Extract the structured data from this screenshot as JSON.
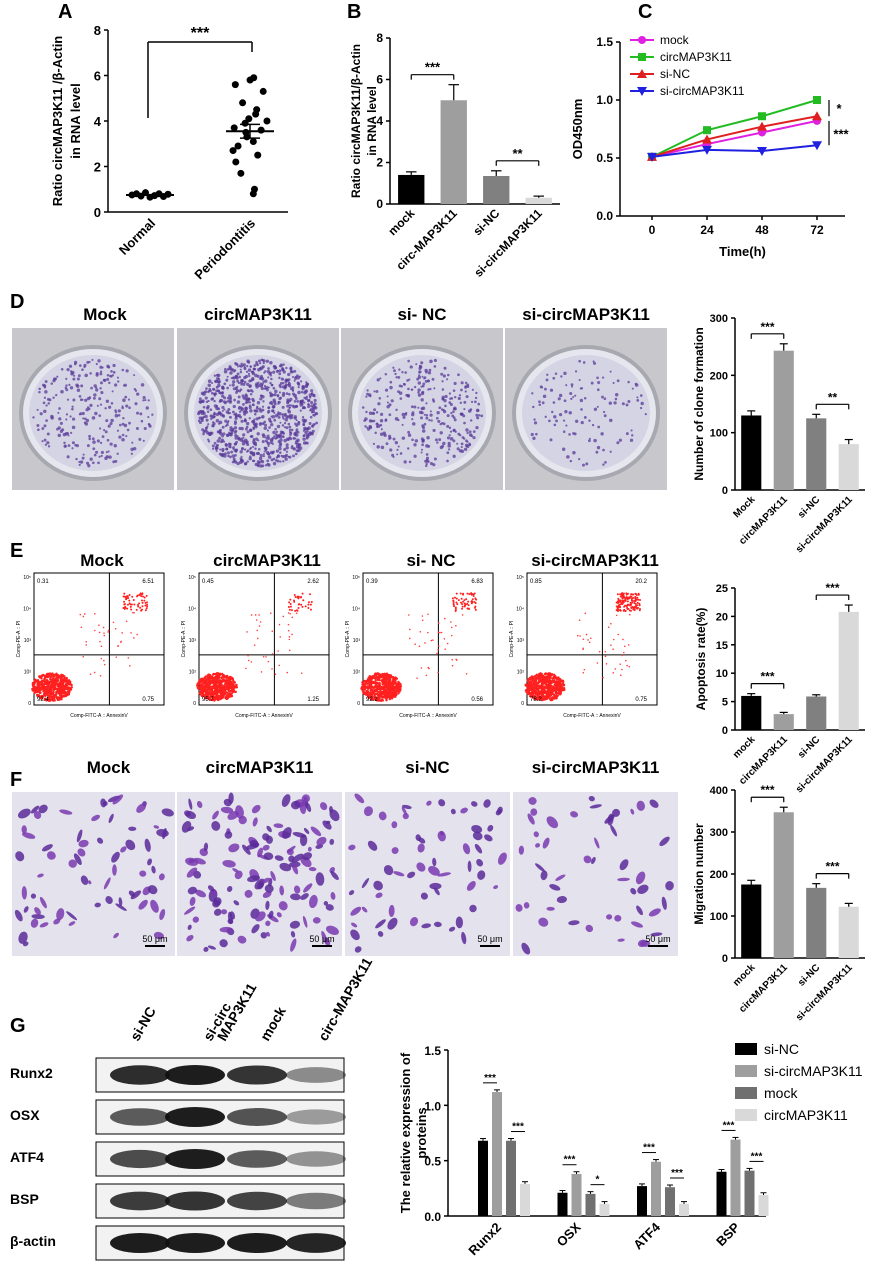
{
  "figure": {
    "panels": {
      "A": {
        "letter": "A"
      },
      "B": {
        "letter": "B"
      },
      "C": {
        "letter": "C"
      },
      "D": {
        "letter": "D",
        "image_labels": [
          "Mock",
          "circMAP3K11",
          "si- NC",
          "si-circMAP3K11"
        ]
      },
      "E": {
        "letter": "E",
        "image_labels": [
          "Mock",
          "circMAP3K11",
          "si- NC",
          "si-circMAP3K11"
        ],
        "flow": [
          {
            "ul": "0.31",
            "ur": "6.51",
            "ll": "92.4",
            "lr": "0.75"
          },
          {
            "ul": "0.45",
            "ur": "2.62",
            "ll": "95.7",
            "lr": "1.25"
          },
          {
            "ul": "0.39",
            "ur": "6.83",
            "ll": "92.2",
            "lr": "0.56"
          },
          {
            "ul": "0.85",
            "ur": "20.2",
            "ll": "78.2",
            "lr": "0.75"
          }
        ],
        "flow_xlabel": "Comp-FITC-A :: AnnexinV",
        "flow_ylabel": "Comp-PE-A :: PI",
        "flow_ticks": [
          "10⁵",
          "10⁴",
          "10³",
          "10²",
          "0"
        ]
      },
      "F": {
        "letter": "F",
        "image_labels": [
          "Mock",
          "circMAP3K11",
          "si-NC",
          "si-circMAP3K11"
        ],
        "scale_bar": "50 μm"
      },
      "G": {
        "letter": "G",
        "blot_lanes": [
          "si-NC",
          "si-circ\nMAP3K11",
          "mock",
          "circ-MAP3K11"
        ],
        "blot_rows": [
          "Runx2",
          "OSX",
          "ATF4",
          "BSP",
          "β-actin"
        ]
      }
    }
  },
  "chart_data": [
    {
      "id": "A",
      "type": "scatter",
      "categories": [
        "Normal",
        "Periodontitis"
      ],
      "ylabel": "Ratio circMAP3K11 /β-Actin in RNA level",
      "ylim": [
        0,
        8
      ],
      "yticks": [
        0,
        2,
        4,
        6,
        8
      ],
      "series": [
        {
          "name": "Normal",
          "values": [
            0.75,
            0.8,
            0.7,
            0.85,
            0.65,
            0.72,
            0.8,
            0.68,
            0.78
          ],
          "mean": 0.75
        },
        {
          "name": "Periodontitis",
          "values": [
            5.9,
            5.6,
            5.8,
            5.3,
            4.8,
            4.5,
            4.3,
            4.1,
            4.0,
            3.9,
            3.7,
            3.6,
            3.5,
            3.3,
            3.1,
            2.9,
            2.7,
            2.5,
            2.2,
            1.7,
            1.0,
            0.8
          ],
          "mean": 3.55
        }
      ],
      "annotations": [
        "***"
      ]
    },
    {
      "id": "B",
      "type": "bar",
      "categories": [
        "mock",
        "circ-MAP3K11",
        "si-NC",
        "si-circMAP3K11"
      ],
      "values": [
        1.4,
        5.0,
        1.35,
        0.3
      ],
      "errors": [
        0.15,
        0.75,
        0.25,
        0.08
      ],
      "ylabel": "Ratio circMAP3K11/β-Actin in RNA level",
      "ylim": [
        0,
        8
      ],
      "yticks": [
        0,
        2,
        4,
        6,
        8
      ],
      "colors": [
        "#000000",
        "#9e9e9e",
        "#808080",
        "#d9d9d9"
      ],
      "annotations": [
        "***",
        "**"
      ]
    },
    {
      "id": "C",
      "type": "line",
      "x": [
        0,
        24,
        48,
        72
      ],
      "xlabel": "Time(h)",
      "ylabel": "OD450nm",
      "ylim": [
        0,
        1.5
      ],
      "yticks": [
        0.0,
        0.5,
        1.0,
        1.5
      ],
      "series": [
        {
          "name": "mock",
          "values": [
            0.51,
            0.62,
            0.72,
            0.82
          ],
          "color": "#e020e0"
        },
        {
          "name": "circMAP3K11",
          "values": [
            0.51,
            0.74,
            0.86,
            1.0
          ],
          "color": "#22bb22"
        },
        {
          "name": "si-NC",
          "values": [
            0.51,
            0.66,
            0.77,
            0.86
          ],
          "color": "#e02020"
        },
        {
          "name": "si-circMAP3K11",
          "values": [
            0.51,
            0.57,
            0.56,
            0.61
          ],
          "color": "#2020e0"
        }
      ],
      "legend": "top-left",
      "annotations": [
        "*",
        "***"
      ]
    },
    {
      "id": "D",
      "type": "bar",
      "categories": [
        "Mock",
        "circMAP3K11",
        "si-NC",
        "si-circMAP3K11"
      ],
      "values": [
        130,
        243,
        125,
        80
      ],
      "errors": [
        8,
        12,
        7,
        8
      ],
      "ylabel": "Number of clone formation",
      "ylim": [
        0,
        300
      ],
      "yticks": [
        0,
        100,
        200,
        300
      ],
      "colors": [
        "#000000",
        "#9e9e9e",
        "#808080",
        "#d9d9d9"
      ],
      "annotations": [
        "***",
        "**"
      ]
    },
    {
      "id": "E",
      "type": "bar",
      "categories": [
        "mock",
        "circMAP3K11",
        "si-NC",
        "si-circMAP3K11"
      ],
      "values": [
        6.0,
        2.8,
        5.9,
        20.8
      ],
      "errors": [
        0.4,
        0.3,
        0.3,
        1.2
      ],
      "ylabel": "Apoptosis rate(%)",
      "ylim": [
        0,
        25
      ],
      "yticks": [
        0,
        5,
        10,
        15,
        20,
        25
      ],
      "colors": [
        "#000000",
        "#9e9e9e",
        "#808080",
        "#d9d9d9"
      ],
      "annotations": [
        "***",
        "***"
      ]
    },
    {
      "id": "F",
      "type": "bar",
      "categories": [
        "mock",
        "circMAP3K11",
        "si-NC",
        "si-circMAP3K11"
      ],
      "values": [
        175,
        347,
        167,
        122
      ],
      "errors": [
        10,
        12,
        10,
        8
      ],
      "ylabel": "Migration number",
      "ylim": [
        0,
        400
      ],
      "yticks": [
        0,
        100,
        200,
        300,
        400
      ],
      "colors": [
        "#000000",
        "#9e9e9e",
        "#808080",
        "#d9d9d9"
      ],
      "annotations": [
        "***",
        "***"
      ]
    },
    {
      "id": "G",
      "type": "bar",
      "categories": [
        "Runx2",
        "OSX",
        "ATF4",
        "BSP"
      ],
      "ylabel": "The relative expression of proteins",
      "ylim": [
        0,
        1.5
      ],
      "yticks": [
        0.0,
        0.5,
        1.0,
        1.5
      ],
      "series": [
        {
          "name": "si-NC",
          "values": [
            0.68,
            0.21,
            0.27,
            0.4
          ],
          "color": "#000000"
        },
        {
          "name": "si-circMAP3K11",
          "values": [
            1.12,
            0.38,
            0.49,
            0.69
          ],
          "color": "#9e9e9e"
        },
        {
          "name": "mock",
          "values": [
            0.68,
            0.2,
            0.26,
            0.41
          ],
          "color": "#707070"
        },
        {
          "name": "circMAP3K11",
          "values": [
            0.29,
            0.11,
            0.11,
            0.19
          ],
          "color": "#d9d9d9"
        }
      ],
      "annotations": [
        [
          "***",
          "***"
        ],
        [
          "***",
          "*"
        ],
        [
          "***",
          "***"
        ],
        [
          "***",
          "***"
        ]
      ],
      "legend": "top-right"
    }
  ]
}
